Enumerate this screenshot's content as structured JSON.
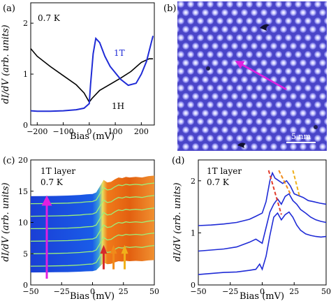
{
  "chart_data": [
    {
      "panel_label": "(a)",
      "type": "line",
      "annotation": "0.7 K",
      "xlabel": "Bias (mV)",
      "ylabel": "dI/dV (arb. units)",
      "xlim": [
        -225,
        250
      ],
      "ylim": [
        0,
        2.4
      ],
      "xticks": [
        "−200",
        "−100",
        "0",
        "100",
        "200"
      ],
      "yticks": [
        "0",
        "1",
        "2"
      ],
      "series": [
        {
          "name": "1H",
          "color": "#000000",
          "x": [
            -225,
            -200,
            -150,
            -100,
            -50,
            -20,
            0,
            10,
            40,
            80,
            120,
            160,
            200,
            230,
            245
          ],
          "y": [
            1.5,
            1.35,
            1.15,
            0.97,
            0.79,
            0.63,
            0.45,
            0.52,
            0.68,
            0.8,
            0.92,
            1.05,
            1.23,
            1.3,
            1.3
          ]
        },
        {
          "name": "1T",
          "color": "#1f2bd6",
          "x": [
            -225,
            -200,
            -150,
            -100,
            -50,
            -20,
            0,
            5,
            15,
            25,
            40,
            60,
            80,
            120,
            150,
            180,
            200,
            220,
            235,
            245
          ],
          "y": [
            0.28,
            0.27,
            0.27,
            0.28,
            0.3,
            0.33,
            0.42,
            0.8,
            1.4,
            1.7,
            1.62,
            1.35,
            1.15,
            0.9,
            0.78,
            0.82,
            1.0,
            1.25,
            1.55,
            1.75
          ]
        }
      ]
    },
    {
      "panel_label": "(b)",
      "type": "heatmap",
      "scale_label": "5 nm"
    },
    {
      "panel_label": "(c)",
      "type": "line",
      "annotation": [
        "1T layer",
        "0.7 K"
      ],
      "xlabel": "Bias (mV)",
      "ylabel": "dI/dV (arb. units)",
      "xlim": [
        -50,
        50
      ],
      "ylim": [
        0,
        20
      ],
      "xticks": [
        "−50",
        "−25",
        "0",
        "25",
        "50"
      ],
      "yticks": [
        "0",
        "5",
        "10",
        "15",
        "20"
      ],
      "arrow_colors": [
        "#d62a2a",
        "#f08a1a",
        "#f0b01a"
      ],
      "arrow_x": [
        9,
        17,
        26
      ],
      "offsets": [
        3,
        5,
        7,
        9,
        11,
        13
      ],
      "x": [
        -50,
        -40,
        -30,
        -20,
        -10,
        -5,
        0,
        3,
        6,
        9,
        12,
        15,
        18,
        21,
        24,
        27,
        30,
        35,
        40,
        45,
        50
      ],
      "shape": [
        0,
        0.02,
        0.05,
        0.1,
        0.2,
        0.3,
        0.35,
        0.6,
        1.6,
        2.6,
        2.2,
        2.3,
        2.7,
        3.0,
        2.9,
        3.1,
        3.0,
        3.1,
        3.0,
        3.2,
        3.3
      ]
    },
    {
      "panel_label": "(d)",
      "type": "line",
      "annotation": [
        "1T layer",
        "0.7 K"
      ],
      "xlabel": "Bias (mV)",
      "ylabel": "dI/dV (arb. units)",
      "xlim": [
        -50,
        50
      ],
      "ylim": [
        0,
        2.4
      ],
      "xticks": [
        "−50",
        "−25",
        "0",
        "25",
        "50"
      ],
      "yticks": [
        "0",
        "1",
        "2"
      ],
      "series": [
        {
          "color": "#1f2bd6",
          "x": [
            -50,
            -40,
            -30,
            -20,
            -10,
            -5,
            0,
            3,
            6,
            8,
            10,
            13,
            16,
            19,
            22,
            25,
            28,
            32,
            36,
            40,
            45,
            50
          ],
          "y": [
            1.14,
            1.15,
            1.17,
            1.2,
            1.26,
            1.32,
            1.38,
            1.6,
            2.0,
            2.15,
            2.05,
            2.0,
            1.95,
            2.0,
            1.9,
            1.75,
            1.72,
            1.68,
            1.62,
            1.6,
            1.57,
            1.55
          ]
        },
        {
          "color": "#1f2bd6",
          "x": [
            -50,
            -40,
            -30,
            -20,
            -10,
            -5,
            0,
            3,
            6,
            9,
            12,
            15,
            18,
            21,
            24,
            27,
            30,
            34,
            38,
            42,
            46,
            50
          ],
          "y": [
            0.65,
            0.67,
            0.69,
            0.73,
            0.82,
            0.88,
            0.8,
            1.1,
            1.4,
            1.55,
            1.65,
            1.55,
            1.7,
            1.75,
            1.62,
            1.55,
            1.45,
            1.38,
            1.3,
            1.25,
            1.22,
            1.2
          ]
        },
        {
          "color": "#1f2bd6",
          "x": [
            -50,
            -40,
            -30,
            -20,
            -10,
            -5,
            -2,
            0,
            3,
            6,
            9,
            12,
            15,
            18,
            21,
            24,
            27,
            30,
            34,
            38,
            42,
            46,
            50
          ],
          "y": [
            0.2,
            0.22,
            0.24,
            0.25,
            0.28,
            0.3,
            0.4,
            0.3,
            0.55,
            0.95,
            1.3,
            1.38,
            1.25,
            1.35,
            1.4,
            1.3,
            1.15,
            1.05,
            0.98,
            0.95,
            0.93,
            0.92,
            0.93
          ]
        }
      ],
      "dashed_colors": [
        "#e23b2a",
        "#f08a1a",
        "#f0b01a"
      ]
    }
  ]
}
